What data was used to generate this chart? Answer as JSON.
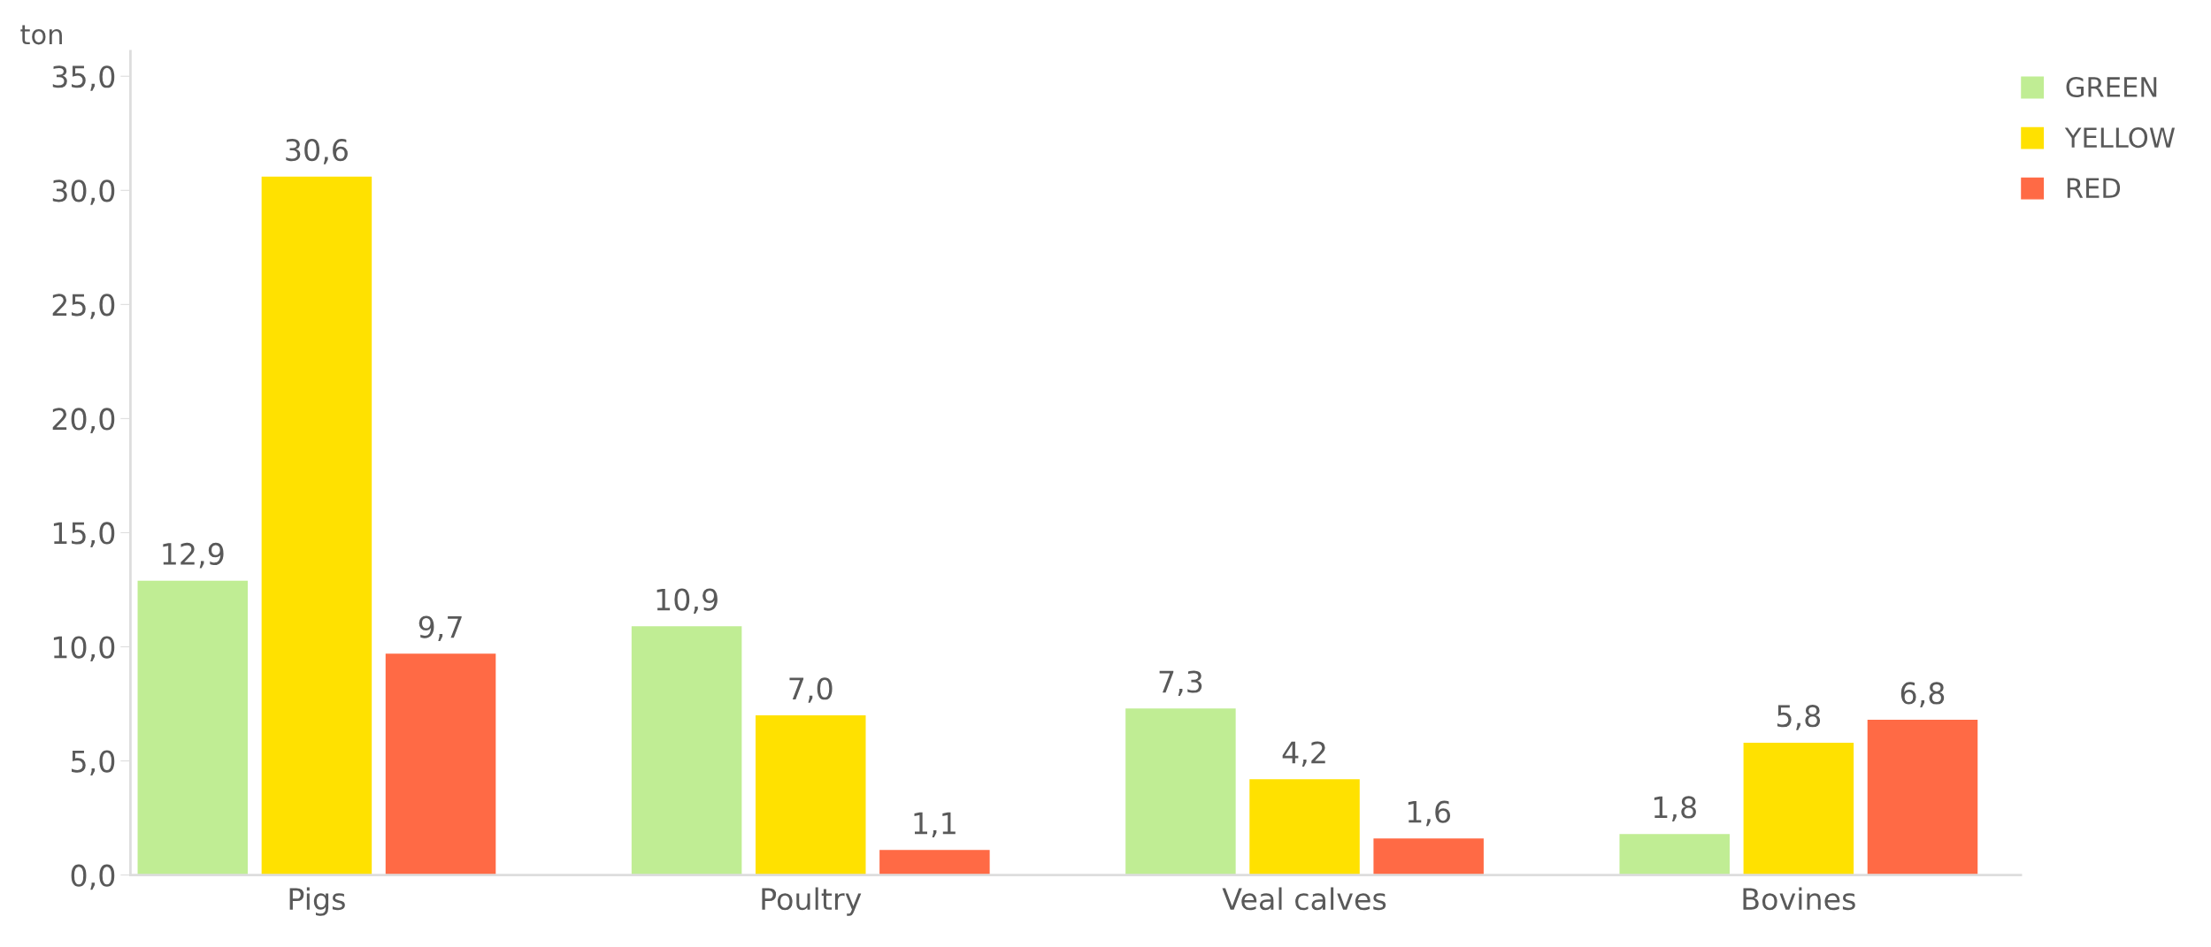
{
  "chart_data": {
    "type": "bar",
    "ylabel": "ton",
    "categories": [
      "Pigs",
      "Poultry",
      "Veal calves",
      "Bovines"
    ],
    "series": [
      {
        "name": "GREEN",
        "color": "#c0ed94",
        "values": [
          12.9,
          10.9,
          7.3,
          1.8
        ],
        "value_labels": [
          "12,9",
          "10,9",
          "7,3",
          "1,8"
        ]
      },
      {
        "name": "YELLOW",
        "color": "#ffe100",
        "values": [
          30.6,
          7.0,
          4.2,
          5.8
        ],
        "value_labels": [
          "30,6",
          "7,0",
          "4,2",
          "5,8"
        ]
      },
      {
        "name": "RED",
        "color": "#ff6a45",
        "values": [
          9.7,
          1.1,
          1.6,
          6.8
        ],
        "value_labels": [
          "9,7",
          "1,1",
          "1,6",
          "6,8"
        ]
      }
    ],
    "ylim": [
      0,
      36.1
    ],
    "yticks": [
      {
        "value": 0,
        "label": "0,0"
      },
      {
        "value": 5,
        "label": "5,0"
      },
      {
        "value": 10,
        "label": "10,0"
      },
      {
        "value": 15,
        "label": "15,0"
      },
      {
        "value": 20,
        "label": "20,0"
      },
      {
        "value": 25,
        "label": "25,0"
      },
      {
        "value": 30,
        "label": "30,0"
      },
      {
        "value": 35,
        "label": "35,0"
      }
    ],
    "grid": false,
    "legend": "top right"
  }
}
